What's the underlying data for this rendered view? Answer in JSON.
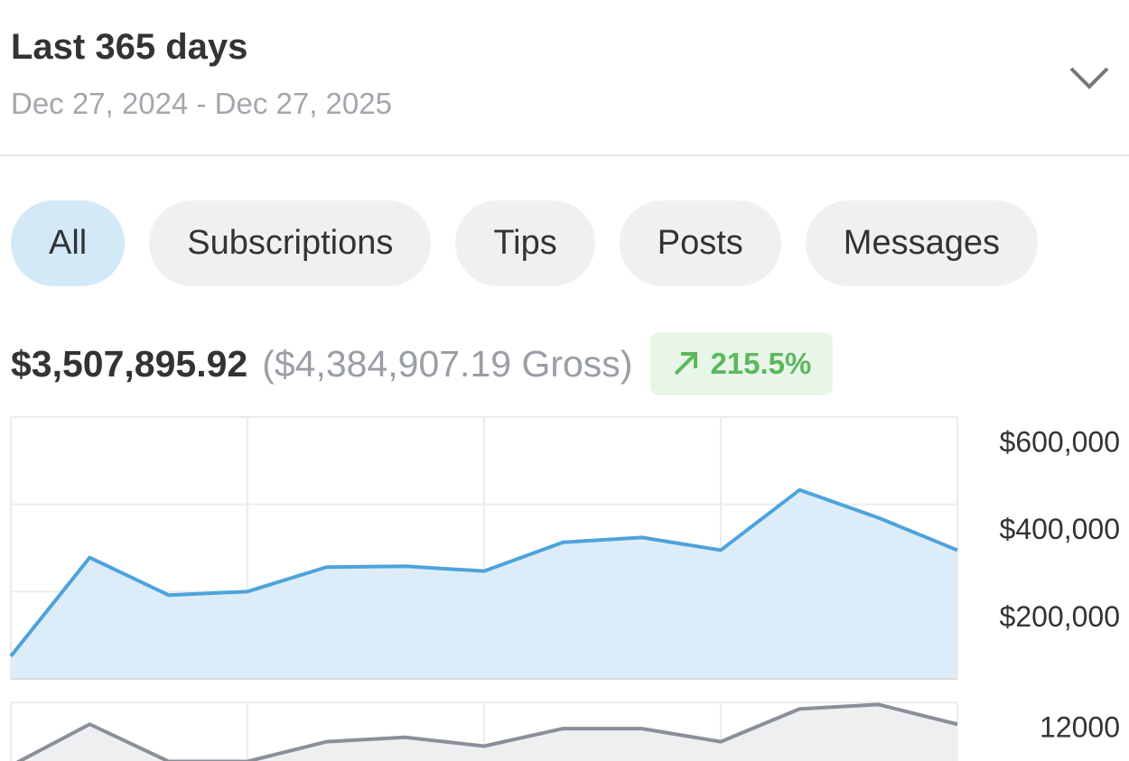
{
  "header": {
    "title": "Last 365 days",
    "subtitle": "Dec 27, 2024 - Dec 27, 2025"
  },
  "tabs": [
    "All",
    "Subscriptions",
    "Tips",
    "Posts",
    "Messages"
  ],
  "summary": {
    "net": "$3,507,895.92",
    "gross": "($4,384,907.19 Gross)",
    "change": "215.5%"
  },
  "chart_data": [
    {
      "type": "area",
      "color": "#4ea3dc",
      "fill": "#dcedf9",
      "grid": true,
      "ylim": [
        0,
        600000
      ],
      "yticks": [
        {
          "value": 200000,
          "label": "$200,000"
        },
        {
          "value": 400000,
          "label": "$400,000"
        },
        {
          "value": 600000,
          "label": "$600,000"
        }
      ],
      "values": [
        52000,
        278000,
        192000,
        200000,
        256000,
        258000,
        247000,
        313000,
        324000,
        295000,
        433000,
        369000,
        295000
      ]
    },
    {
      "type": "area",
      "color": "#8a8f99",
      "fill": "#eeeff1",
      "grid": true,
      "ylim": [
        8000,
        12000
      ],
      "yticks": [
        12000
      ],
      "values": [
        9100,
        11000,
        9300,
        9300,
        10200,
        10400,
        10000,
        10800,
        10800,
        10200,
        11700,
        11900,
        11000
      ]
    }
  ]
}
